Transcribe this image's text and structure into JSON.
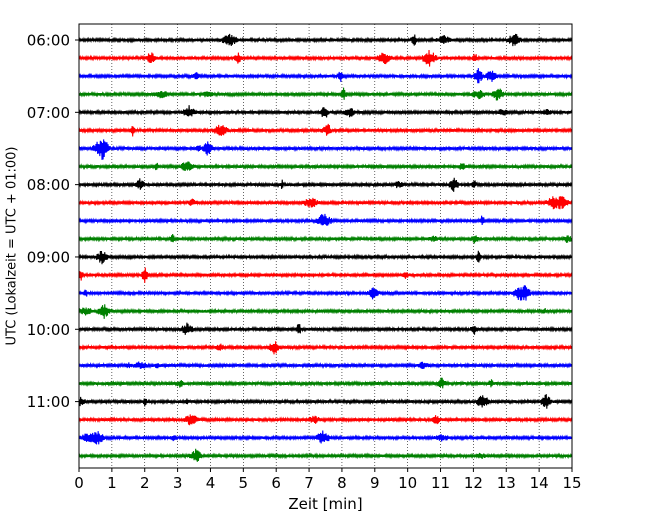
{
  "chart_data": {
    "type": "line",
    "title": "",
    "xlabel": "Zeit  [min]",
    "ylabel": "UTC (Lokalzeit = UTC + 01:00)",
    "xlim": [
      0,
      15
    ],
    "x_ticks": [
      0,
      1,
      2,
      3,
      4,
      5,
      6,
      7,
      8,
      9,
      10,
      11,
      12,
      13,
      14,
      15
    ],
    "x_tick_labels": [
      "0",
      "1",
      "2",
      "3",
      "4",
      "5",
      "6",
      "7",
      "8",
      "9",
      "10",
      "11",
      "12",
      "13",
      "14",
      "15"
    ],
    "grid": "vertical dotted lines at each minute",
    "y_tick_labels": [
      "06:00",
      "07:00",
      "08:00",
      "09:00",
      "10:00",
      "11:00"
    ],
    "line_colors": [
      "#000000",
      "#ff0000",
      "#0000ff",
      "#008000"
    ],
    "traces": [
      {
        "start": "06:00",
        "color": "#000000"
      },
      {
        "start": "06:15",
        "color": "#ff0000"
      },
      {
        "start": "06:30",
        "color": "#0000ff"
      },
      {
        "start": "06:45",
        "color": "#008000"
      },
      {
        "start": "07:00",
        "color": "#000000"
      },
      {
        "start": "07:15",
        "color": "#ff0000"
      },
      {
        "start": "07:30",
        "color": "#0000ff"
      },
      {
        "start": "07:45",
        "color": "#008000"
      },
      {
        "start": "08:00",
        "color": "#000000"
      },
      {
        "start": "08:15",
        "color": "#ff0000"
      },
      {
        "start": "08:30",
        "color": "#0000ff"
      },
      {
        "start": "08:45",
        "color": "#008000"
      },
      {
        "start": "09:00",
        "color": "#000000"
      },
      {
        "start": "09:15",
        "color": "#ff0000"
      },
      {
        "start": "09:30",
        "color": "#0000ff"
      },
      {
        "start": "09:45",
        "color": "#008000"
      },
      {
        "start": "10:00",
        "color": "#000000"
      },
      {
        "start": "10:15",
        "color": "#ff0000"
      },
      {
        "start": "10:30",
        "color": "#0000ff"
      },
      {
        "start": "10:45",
        "color": "#008000"
      },
      {
        "start": "11:00",
        "color": "#000000"
      },
      {
        "start": "11:15",
        "color": "#ff0000"
      },
      {
        "start": "11:30",
        "color": "#0000ff"
      },
      {
        "start": "11:45",
        "color": "#008000"
      }
    ]
  }
}
